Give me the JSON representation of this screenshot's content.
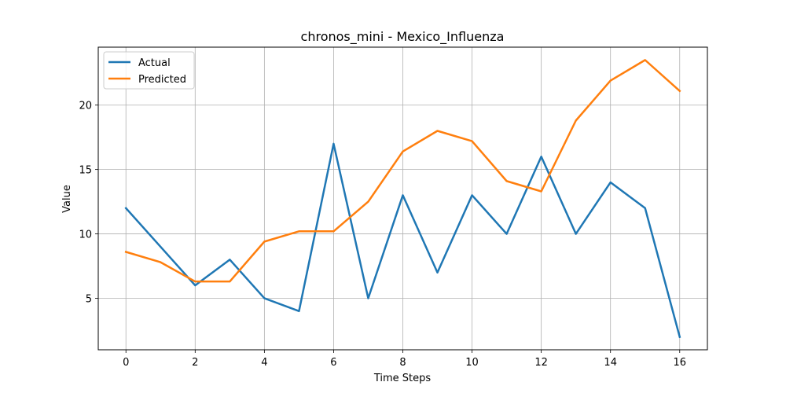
{
  "chart_data": {
    "type": "line",
    "title": "chronos_mini - Mexico_Influenza",
    "xlabel": "Time Steps",
    "ylabel": "Value",
    "x": [
      0,
      1,
      2,
      3,
      4,
      5,
      6,
      7,
      8,
      9,
      10,
      11,
      12,
      13,
      14,
      15,
      16
    ],
    "xlim": [
      -0.8,
      16.8
    ],
    "ylim": [
      1.0,
      24.5
    ],
    "xticks": [
      0,
      2,
      4,
      6,
      8,
      10,
      12,
      14,
      16
    ],
    "yticks": [
      5,
      10,
      15,
      20
    ],
    "grid": true,
    "legend_position": "top-left",
    "series": [
      {
        "name": "Actual",
        "color": "#1f77b4",
        "values": [
          12,
          9,
          6,
          8,
          5,
          4,
          17,
          5,
          13,
          7,
          13,
          10,
          16,
          10,
          14,
          12,
          2
        ]
      },
      {
        "name": "Predicted",
        "color": "#ff7f0e",
        "values": [
          8.6,
          7.8,
          6.3,
          6.3,
          9.4,
          10.2,
          10.2,
          12.5,
          16.4,
          18.0,
          17.2,
          14.1,
          13.3,
          18.8,
          21.9,
          23.5,
          21.1
        ]
      }
    ]
  }
}
